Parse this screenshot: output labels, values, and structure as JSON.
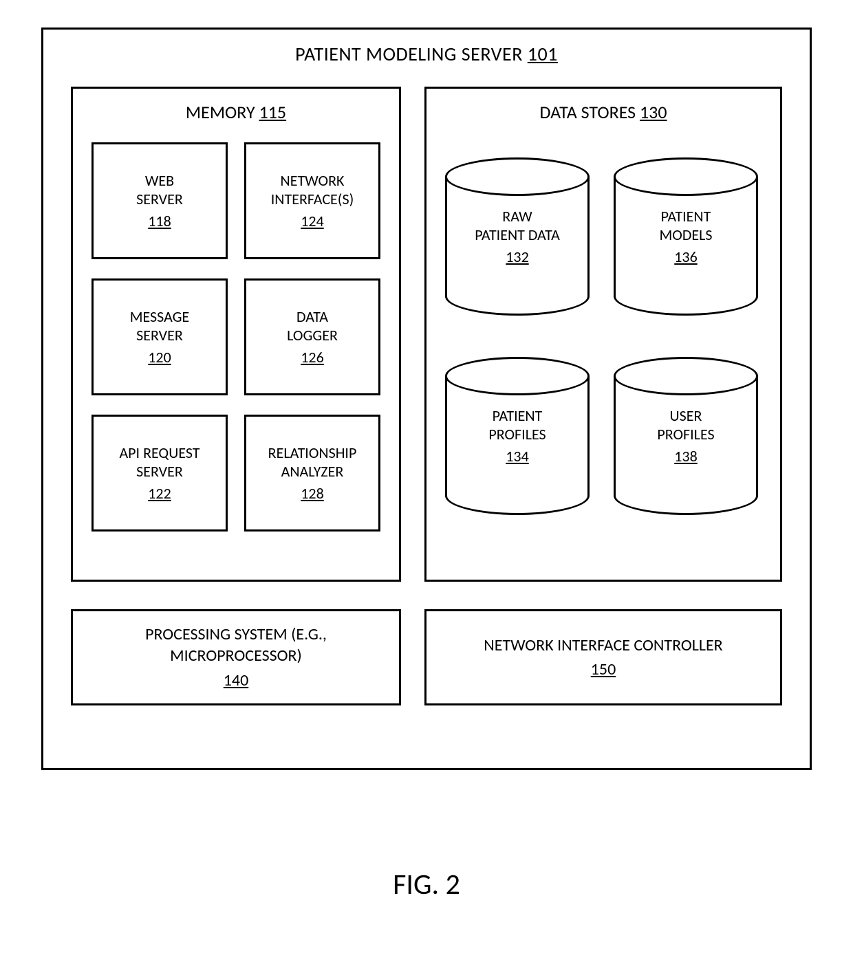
{
  "title": {
    "text": "PATIENT MODELING SERVER",
    "num": "101"
  },
  "figure": "FIG. 2",
  "memory": {
    "title": "MEMORY",
    "num": "115",
    "boxes": [
      {
        "label": "WEB\nSERVER",
        "num": "118"
      },
      {
        "label": "NETWORK\nINTERFACE(S)",
        "num": "124"
      },
      {
        "label": "MESSAGE\nSERVER",
        "num": "120"
      },
      {
        "label": "DATA\nLOGGER",
        "num": "126"
      },
      {
        "label": "API REQUEST\nSERVER",
        "num": "122"
      },
      {
        "label": "RELATIONSHIP\nANALYZER",
        "num": "128"
      }
    ]
  },
  "datastores": {
    "title": "DATA STORES",
    "num": "130",
    "items": [
      {
        "label": "RAW\nPATIENT DATA",
        "num": "132"
      },
      {
        "label": "PATIENT\nMODELS",
        "num": "136"
      },
      {
        "label": "PATIENT\nPROFILES",
        "num": "134"
      },
      {
        "label": "USER\nPROFILES",
        "num": "138"
      }
    ]
  },
  "processing": {
    "label": "PROCESSING SYSTEM (E.G.,\nMICROPROCESSOR)",
    "num": "140"
  },
  "nic": {
    "label": "NETWORK INTERFACE CONTROLLER",
    "num": "150"
  },
  "style": {
    "border_color": "#000000",
    "border_width": 3,
    "bg": "#ffffff",
    "font": "Calibri",
    "title_fontsize": 28,
    "section_title_fontsize": 26,
    "box_fontsize": 22,
    "bottom_fontsize": 24,
    "figure_fontsize": 42
  }
}
